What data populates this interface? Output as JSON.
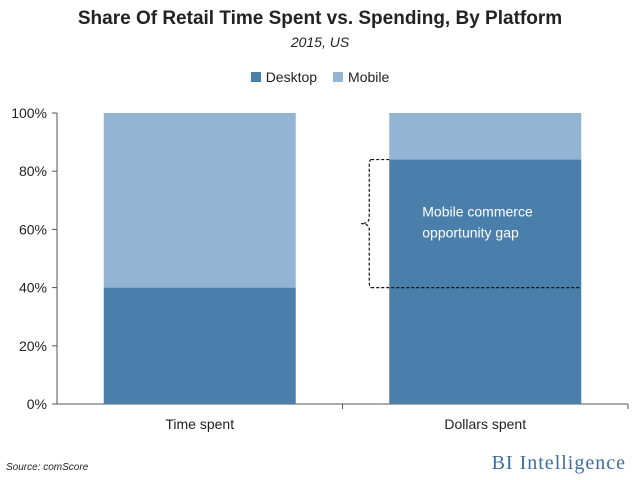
{
  "chart_data": {
    "type": "bar",
    "stacked": true,
    "title": "Share Of Retail Time Spent vs. Spending, By Platform",
    "subtitle": "2015, US",
    "categories": [
      "Time spent",
      "Dollars spent"
    ],
    "series": [
      {
        "name": "Desktop",
        "values": [
          40,
          84
        ],
        "color": "#4a7fab"
      },
      {
        "name": "Mobile",
        "values": [
          60,
          16
        ],
        "color": "#93b4d3"
      }
    ],
    "ylim": [
      0,
      100
    ],
    "yticks": [
      "0%",
      "20%",
      "40%",
      "60%",
      "80%",
      "100%"
    ],
    "legend_position": "top-center",
    "grid": false,
    "annotation": {
      "text_lines": [
        "Mobile commerce",
        "opportunity gap"
      ],
      "range": [
        40,
        84
      ]
    }
  },
  "source": "Source: comScore",
  "brand": "BI Intelligence"
}
